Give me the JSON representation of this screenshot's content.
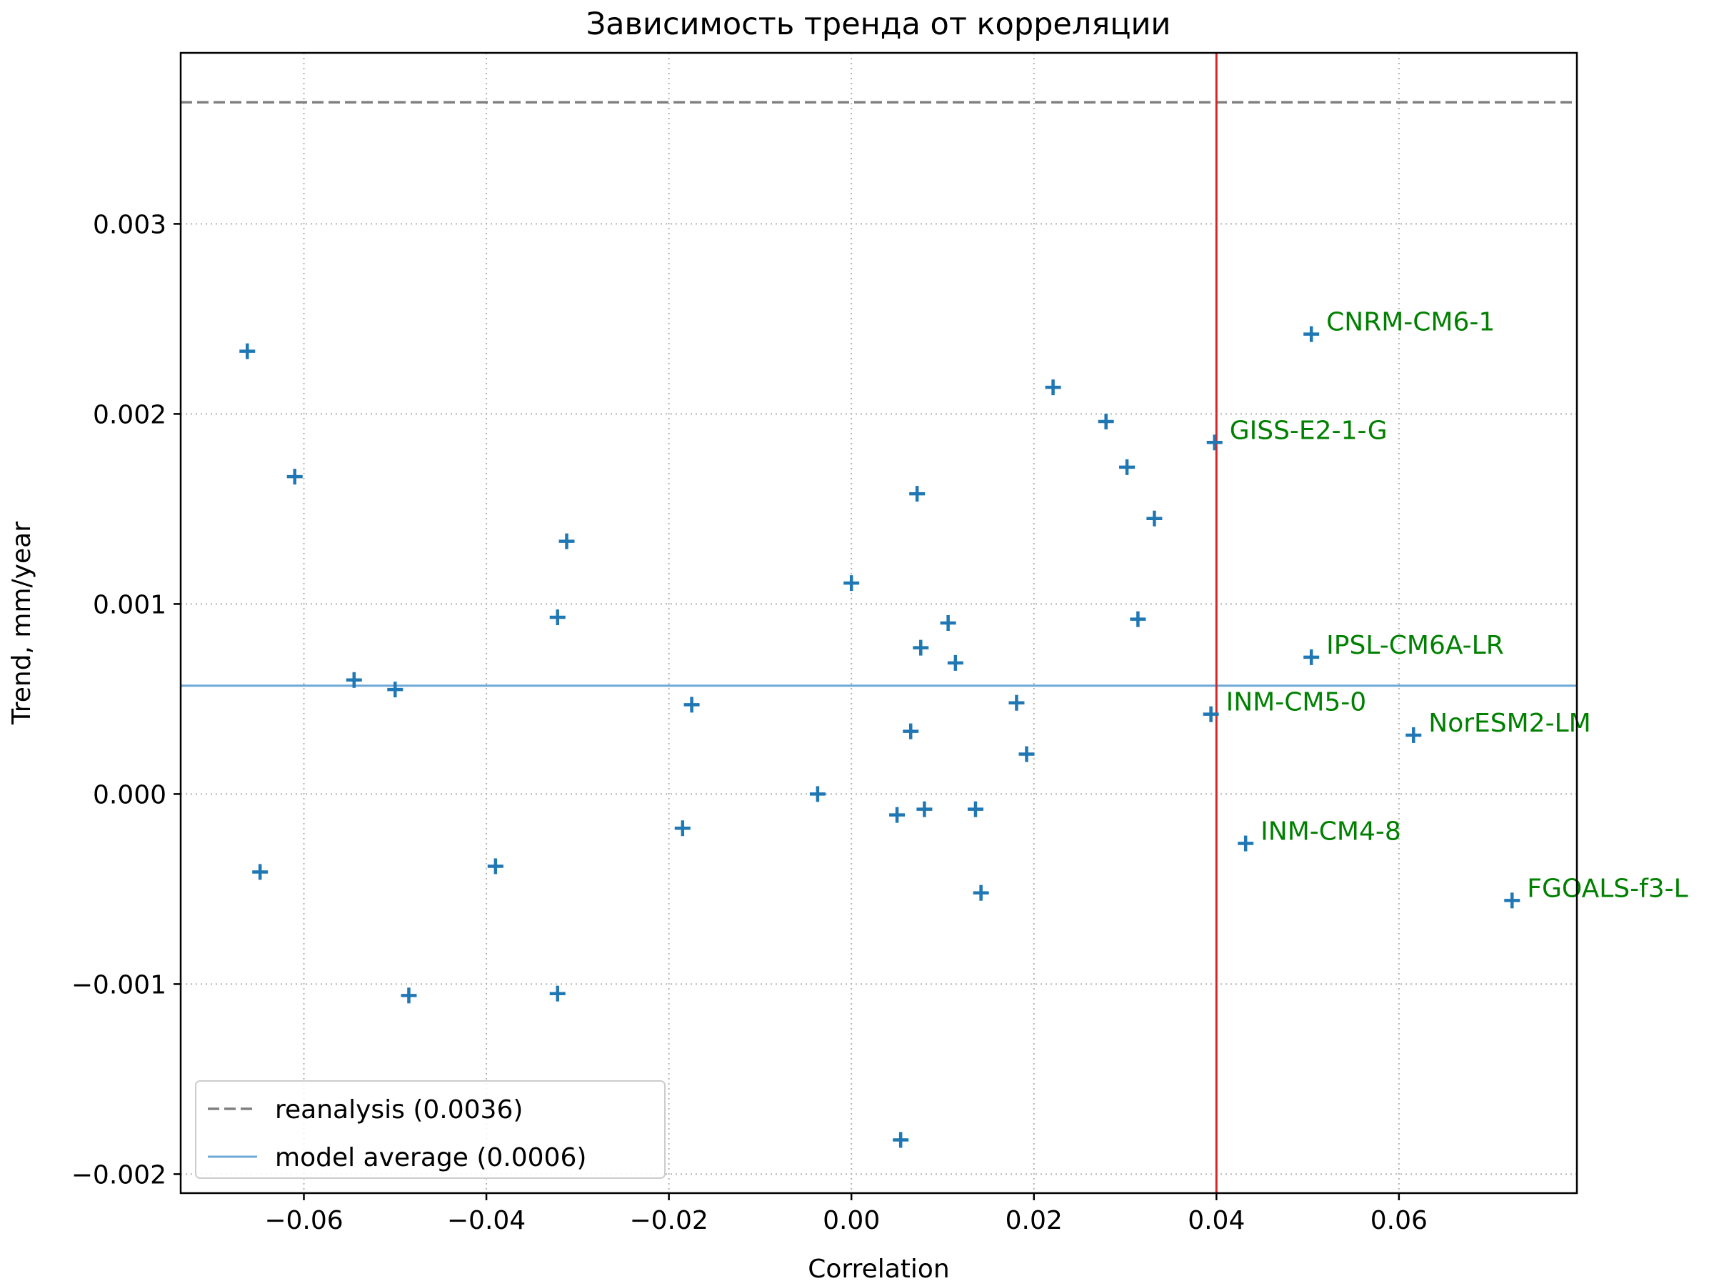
{
  "chart_data": {
    "type": "scatter",
    "title": "Зависимость тренда от корреляции",
    "xlabel": "Correlation",
    "ylabel": "Trend, mm/year",
    "xlim": [
      -0.0735,
      0.0795
    ],
    "ylim": [
      -0.0021,
      0.0039
    ],
    "xticks": [
      -0.06,
      -0.04,
      -0.02,
      0.0,
      0.02,
      0.04,
      0.06
    ],
    "xtick_labels": [
      "−0.06",
      "−0.04",
      "−0.02",
      "0.00",
      "0.02",
      "0.04",
      "0.06"
    ],
    "yticks": [
      -0.002,
      -0.001,
      0.0,
      0.001,
      0.002,
      0.003
    ],
    "ytick_labels": [
      "−0.002",
      "−0.001",
      "0.000",
      "0.001",
      "0.002",
      "0.003"
    ],
    "grid": true,
    "legend_position": "lower-left",
    "colors": {
      "points": "#1f77b4",
      "reanalysis_line": "#808080",
      "model_average_line": "#6fa8d6",
      "threshold_line": "#d62728",
      "annotation_text": "#008000"
    },
    "reference_lines": [
      {
        "orientation": "horizontal",
        "y": 0.00364,
        "style": "dashed",
        "color": "#808080",
        "legend_label": "reanalysis (0.0036)"
      },
      {
        "orientation": "horizontal",
        "y": 0.00057,
        "style": "solid",
        "color": "#6fa8d6",
        "legend_label": "model average (0.0006)"
      },
      {
        "orientation": "vertical",
        "x": 0.04,
        "style": "solid",
        "color": "#d62728",
        "legend_label": ""
      }
    ],
    "points": [
      {
        "x": -0.0662,
        "y": 0.00233,
        "label": ""
      },
      {
        "x": -0.0648,
        "y": -0.00041,
        "label": ""
      },
      {
        "x": -0.061,
        "y": 0.00167,
        "label": ""
      },
      {
        "x": -0.0545,
        "y": 0.0006,
        "label": ""
      },
      {
        "x": -0.05,
        "y": 0.00055,
        "label": ""
      },
      {
        "x": -0.0485,
        "y": -0.00106,
        "label": ""
      },
      {
        "x": -0.039,
        "y": -0.00038,
        "label": ""
      },
      {
        "x": -0.0322,
        "y": 0.00093,
        "label": ""
      },
      {
        "x": -0.0322,
        "y": -0.00105,
        "label": ""
      },
      {
        "x": -0.0312,
        "y": 0.00133,
        "label": ""
      },
      {
        "x": -0.0185,
        "y": -0.00018,
        "label": ""
      },
      {
        "x": -0.0175,
        "y": 0.00047,
        "label": ""
      },
      {
        "x": -0.0037,
        "y": 0.0,
        "label": ""
      },
      {
        "x": 0.0,
        "y": 0.00111,
        "label": ""
      },
      {
        "x": 0.005,
        "y": -0.00011,
        "label": ""
      },
      {
        "x": 0.0054,
        "y": -0.00182,
        "label": ""
      },
      {
        "x": 0.0065,
        "y": 0.00033,
        "label": ""
      },
      {
        "x": 0.0072,
        "y": 0.00158,
        "label": ""
      },
      {
        "x": 0.0076,
        "y": 0.00077,
        "label": ""
      },
      {
        "x": 0.008,
        "y": -8e-05,
        "label": ""
      },
      {
        "x": 0.0106,
        "y": 0.0009,
        "label": ""
      },
      {
        "x": 0.0114,
        "y": 0.00069,
        "label": ""
      },
      {
        "x": 0.0136,
        "y": -8e-05,
        "label": ""
      },
      {
        "x": 0.0142,
        "y": -0.00052,
        "label": ""
      },
      {
        "x": 0.0181,
        "y": 0.00048,
        "label": ""
      },
      {
        "x": 0.0192,
        "y": 0.00021,
        "label": ""
      },
      {
        "x": 0.0221,
        "y": 0.00214,
        "label": ""
      },
      {
        "x": 0.0279,
        "y": 0.00196,
        "label": ""
      },
      {
        "x": 0.0302,
        "y": 0.00172,
        "label": ""
      },
      {
        "x": 0.0314,
        "y": 0.00092,
        "label": ""
      },
      {
        "x": 0.0332,
        "y": 0.00145,
        "label": ""
      },
      {
        "x": 0.0394,
        "y": 0.00042,
        "label": "INM-CM5-0"
      },
      {
        "x": 0.0398,
        "y": 0.00185,
        "label": "GISS-E2-1-G"
      },
      {
        "x": 0.0432,
        "y": -0.00026,
        "label": "INM-CM4-8"
      },
      {
        "x": 0.0504,
        "y": 0.00242,
        "label": "CNRM-CM6-1"
      },
      {
        "x": 0.0504,
        "y": 0.00072,
        "label": "IPSL-CM6A-LR"
      },
      {
        "x": 0.0616,
        "y": 0.00031,
        "label": "NorESM2-LM"
      },
      {
        "x": 0.0724,
        "y": -0.00056,
        "label": "FGOALS-f3-L"
      }
    ]
  }
}
